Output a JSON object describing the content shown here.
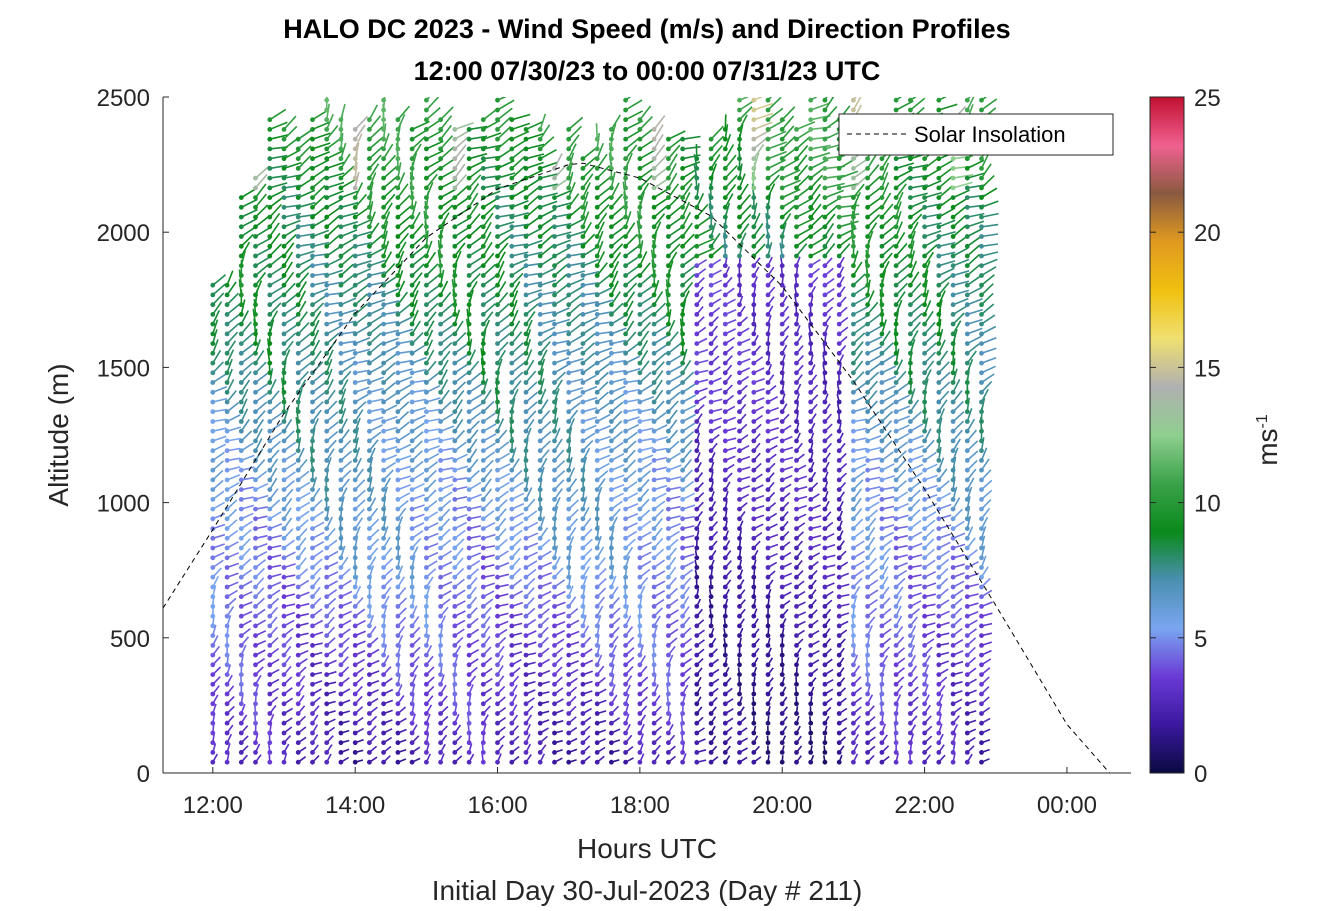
{
  "chart_data": {
    "type": "scatter",
    "title_line1": "HALO DC 2023 - Wind Speed (m/s) and Direction Profiles",
    "title_line2": "12:00 07/30/23 to 00:00 07/31/23  UTC",
    "xlabel": "Hours UTC",
    "xlabel2": "Initial Day 30-Jul-2023 (Day # 211)",
    "ylabel": "Altitude (m)",
    "xlim": [
      11.3,
      24.9
    ],
    "ylim": [
      0,
      2500
    ],
    "x_ticks": [
      12,
      14,
      16,
      18,
      20,
      22,
      24
    ],
    "x_tick_labels": [
      "12:00",
      "14:00",
      "16:00",
      "18:00",
      "20:00",
      "22:00",
      "00:00"
    ],
    "y_ticks": [
      0,
      500,
      1000,
      1500,
      2000,
      2500
    ],
    "y_tick_labels": [
      "0",
      "500",
      "1000",
      "1500",
      "2000",
      "2500"
    ],
    "colorbar": {
      "label": "ms",
      "label_exponent": "-1",
      "range": [
        0,
        25
      ],
      "ticks": [
        0,
        5,
        10,
        15,
        20,
        25
      ],
      "tick_labels": [
        "0",
        "5",
        "10",
        "15",
        "20",
        "25"
      ],
      "colors": [
        "#0a0a40",
        "#3b18a0",
        "#6a3bd6",
        "#7aa6f0",
        "#4a8fb0",
        "#0a8a1a",
        "#3aa24a",
        "#8fcf8f",
        "#b0b0b0",
        "#f0e070",
        "#f0c010",
        "#e09a20",
        "#8a5a40",
        "#f06090",
        "#c01030"
      ]
    },
    "legend": {
      "label": "Solar Insolation",
      "placement": "top-right",
      "style": "dashed black line"
    },
    "solar_insolation": {
      "description_points_hours": [
        11.3,
        12.0,
        13.0,
        14.0,
        15.0,
        16.0,
        17.0,
        17.2,
        18.0,
        19.0,
        20.0,
        21.0,
        22.0,
        23.0,
        24.0,
        24.6
      ],
      "altitude_equivalent": [
        610,
        900,
        1330,
        1700,
        1980,
        2160,
        2250,
        2255,
        2200,
        2060,
        1800,
        1450,
        1050,
        620,
        180,
        0
      ]
    },
    "barb_profiles": {
      "start_hour": 12.0,
      "interval_hours": 0.2,
      "count": 55,
      "lowest_altitude_m": 40,
      "level_spacing_m": 36,
      "top_altitude_m_by_profile": [
        1820,
        1810,
        2150,
        2200,
        2450,
        2400,
        2350,
        2450,
        2500,
        2450,
        2400,
        2450,
        2500,
        2450,
        2400,
        2500,
        2450,
        2400,
        2400,
        2450,
        2500,
        2450,
        2400,
        2400,
        2250,
        2400,
        2300,
        2350,
        2400,
        2500,
        2450,
        2400,
        2350,
        2350,
        2300,
        2350,
        2400,
        2500,
        2500,
        2500,
        2450,
        2400,
        2500,
        2500,
        2450,
        2500,
        2400,
        2450,
        2500,
        2500,
        2450,
        2500,
        2450,
        2500,
        2500
      ]
    }
  }
}
